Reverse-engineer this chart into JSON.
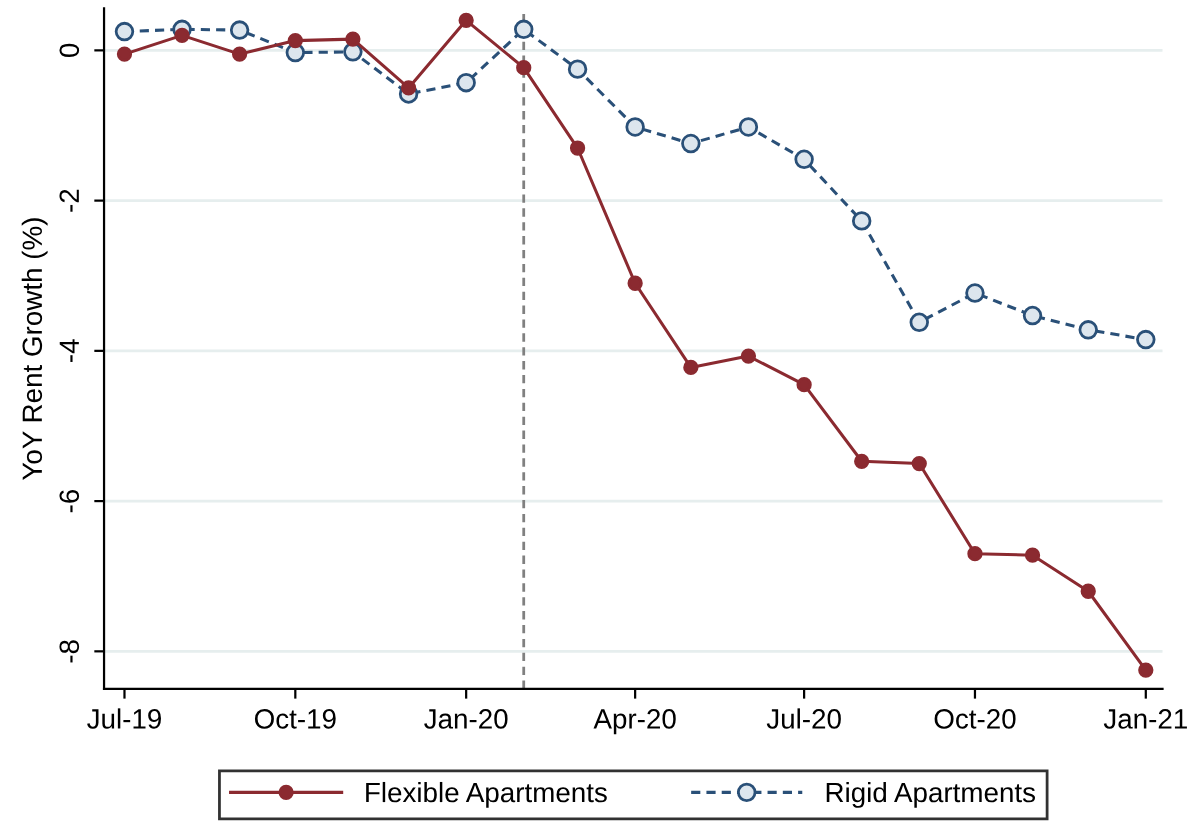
{
  "chart_data": {
    "type": "line",
    "ylabel": "YoY Rent Growth (%)",
    "x": [
      "2019-07",
      "2019-08",
      "2019-09",
      "2019-10",
      "2019-11",
      "2019-12",
      "2020-01",
      "2020-02",
      "2020-03",
      "2020-04",
      "2020-05",
      "2020-06",
      "2020-07",
      "2020-08",
      "2020-09",
      "2020-10",
      "2020-11",
      "2020-12",
      "2021-01"
    ],
    "series": [
      {
        "name": "Flexible Apartments",
        "color": "#8b2a30",
        "marker": "circle",
        "line_style": "solid",
        "values": [
          -0.05,
          0.2,
          -0.05,
          0.13,
          0.15,
          -0.5,
          0.4,
          -0.23,
          -1.3,
          -3.1,
          -4.22,
          -4.07,
          -4.45,
          -5.47,
          -5.5,
          -6.7,
          -6.72,
          -7.2,
          -8.25
        ]
      },
      {
        "name": "Rigid Apartments",
        "color": "#2a5078",
        "marker": "circle",
        "line_style": "dashed",
        "values": [
          0.25,
          0.28,
          0.27,
          -0.03,
          -0.02,
          -0.58,
          -0.43,
          0.28,
          -0.25,
          -1.02,
          -1.24,
          -1.02,
          -1.45,
          -2.27,
          -3.62,
          -3.23,
          -3.53,
          -3.72,
          -3.85
        ]
      }
    ],
    "xlim": [
      "2019-06-20",
      "2021-01-10"
    ],
    "xticks": [
      {
        "value": "2019-07",
        "label": "Jul-19"
      },
      {
        "value": "2019-10",
        "label": "Oct-19"
      },
      {
        "value": "2020-01",
        "label": "Jan-20"
      },
      {
        "value": "2020-04",
        "label": "Apr-20"
      },
      {
        "value": "2020-07",
        "label": "Jul-20"
      },
      {
        "value": "2020-10",
        "label": "Oct-20"
      },
      {
        "value": "2021-01",
        "label": "Jan-21"
      }
    ],
    "ylim": [
      -8.5,
      0.56
    ],
    "yticks": [
      0,
      -2,
      -4,
      -6,
      -8
    ],
    "ref_lines": [
      {
        "axis": "x",
        "value": "2020-02",
        "label": null,
        "color": "#808080",
        "line_style": "dashed"
      }
    ],
    "grid": "y",
    "legend": "bottom"
  }
}
